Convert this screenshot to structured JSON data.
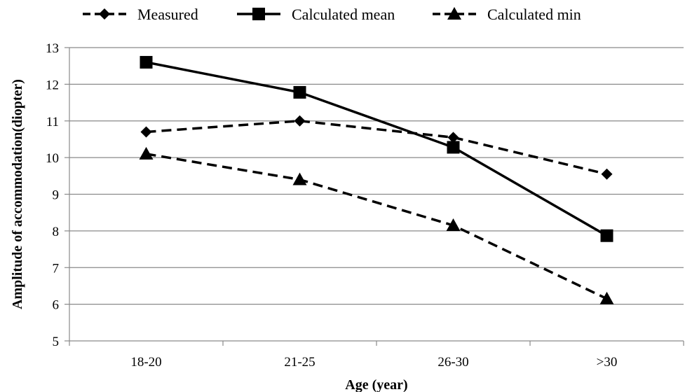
{
  "chart_data": {
    "type": "line",
    "title": "",
    "xlabel": "Age (year)",
    "ylabel": "Amplitude of accommodation(diopter)",
    "categories": [
      "18-20",
      "21-25",
      "26-30",
      ">30"
    ],
    "ylim": [
      5,
      13
    ],
    "yticks": [
      5,
      6,
      7,
      8,
      9,
      10,
      11,
      12,
      13
    ],
    "grid": "horizontal",
    "legend_position": "top",
    "series": [
      {
        "name": "Measured",
        "values": [
          10.7,
          11.0,
          10.55,
          9.55
        ],
        "line_style": "dashed",
        "marker": "diamond"
      },
      {
        "name": "Calculated mean",
        "values": [
          12.6,
          11.78,
          10.28,
          7.87
        ],
        "line_style": "solid",
        "marker": "square"
      },
      {
        "name": "Calculated min",
        "values": [
          10.1,
          9.4,
          8.15,
          6.15
        ],
        "line_style": "dashed",
        "marker": "triangle"
      }
    ]
  }
}
